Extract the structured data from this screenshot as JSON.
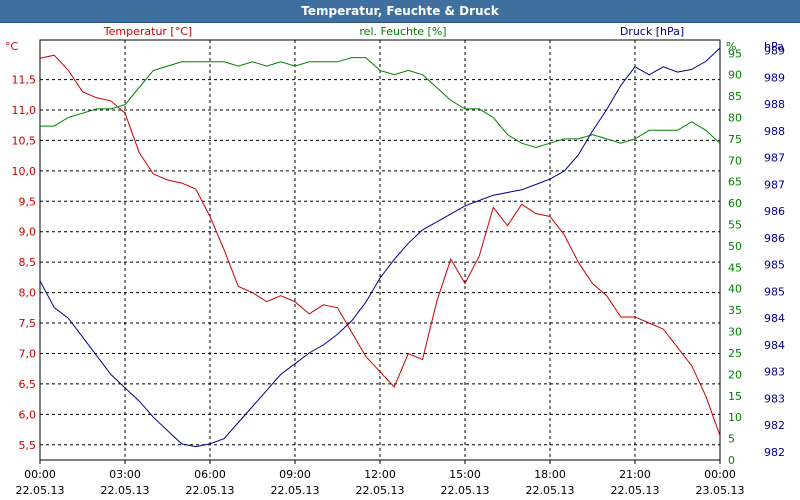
{
  "window": {
    "title": "Temperatur, Feuchte & Druck"
  },
  "colors": {
    "temperature": "#cc0000",
    "humidity": "#008000",
    "pressure": "#00008b",
    "grid": "#000000",
    "titlebar": "#3f6f9f"
  },
  "chart_data": {
    "type": "line",
    "title": "Temperatur, Feuchte & Druck",
    "x": [
      "00:00 22.05.13",
      "03:00 22.05.13",
      "06:00 22.05.13",
      "09:00 22.05.13",
      "12:00 22.05.13",
      "15:00 22.05.13",
      "18:00 22.05.13",
      "21:00 22.05.13",
      "00:00 23.05.13"
    ],
    "x_ticks": [
      {
        "time": "00:00",
        "date": "22.05.13"
      },
      {
        "time": "03:00",
        "date": "22.05.13"
      },
      {
        "time": "06:00",
        "date": "22.05.13"
      },
      {
        "time": "09:00",
        "date": "22.05.13"
      },
      {
        "time": "12:00",
        "date": "22.05.13"
      },
      {
        "time": "15:00",
        "date": "22.05.13"
      },
      {
        "time": "18:00",
        "date": "22.05.13"
      },
      {
        "time": "21:00",
        "date": "22.05.13"
      },
      {
        "time": "00:00",
        "date": "23.05.13"
      }
    ],
    "xlim_hours": [
      0,
      24
    ],
    "axes": {
      "temperature": {
        "label": "Temperatur [°C]",
        "unit": "°C",
        "ylim": [
          5.25,
          12.15
        ],
        "ticks": [
          "5,5",
          "6,0",
          "6,5",
          "7,0",
          "7,5",
          "8,0",
          "8,5",
          "9,0",
          "9,5",
          "10,0",
          "10,5",
          "11,0",
          "11,5"
        ],
        "tick_values": [
          5.5,
          6.0,
          6.5,
          7.0,
          7.5,
          8.0,
          8.5,
          9.0,
          9.5,
          10.0,
          10.5,
          11.0,
          11.5
        ]
      },
      "humidity": {
        "label": "rel. Feuchte [%]",
        "unit": "%",
        "ylim": [
          0,
          98.1
        ],
        "ticks": [
          "0",
          "5",
          "10",
          "15",
          "20",
          "25",
          "30",
          "35",
          "40",
          "45",
          "50",
          "55",
          "60",
          "65",
          "70",
          "75",
          "80",
          "85",
          "90",
          "95"
        ],
        "tick_values": [
          0,
          5,
          10,
          15,
          20,
          25,
          30,
          35,
          40,
          45,
          50,
          55,
          60,
          65,
          70,
          75,
          80,
          85,
          90,
          95
        ]
      },
      "pressure": {
        "label": "Druck [hPa]",
        "unit": "hPa",
        "ylim": [
          981.6,
          989.45
        ],
        "ticks": [
          "982",
          "982",
          "983",
          "983",
          "984",
          "984",
          "985",
          "985",
          "986",
          "986",
          "987",
          "987",
          "988",
          "988",
          "989",
          "989"
        ],
        "tick_values": [
          981.75,
          982.25,
          982.75,
          983.25,
          983.75,
          984.25,
          984.75,
          985.25,
          985.75,
          986.25,
          986.75,
          987.25,
          987.75,
          988.25,
          988.75,
          989.25
        ]
      }
    },
    "series": [
      {
        "name": "Temperatur [°C]",
        "axis": "temperature",
        "color": "#cc0000",
        "x": [
          0,
          0.5,
          1,
          1.5,
          2,
          2.5,
          3,
          3.5,
          4,
          4.5,
          5,
          5.5,
          6,
          6.5,
          7,
          7.5,
          8,
          8.5,
          9,
          9.5,
          10,
          10.5,
          11,
          11.5,
          12,
          12.5,
          13,
          13.5,
          14,
          14.5,
          15,
          15.5,
          16,
          16.5,
          17,
          17.5,
          18,
          18.5,
          19,
          19.5,
          20,
          20.5,
          21,
          21.5,
          22,
          22.5,
          23,
          23.5,
          24
        ],
        "values": [
          11.85,
          11.9,
          11.65,
          11.3,
          11.2,
          11.15,
          10.95,
          10.3,
          9.95,
          9.85,
          9.8,
          9.7,
          9.25,
          8.7,
          8.1,
          8.0,
          7.85,
          7.95,
          7.85,
          7.65,
          7.8,
          7.75,
          7.35,
          6.95,
          6.7,
          6.45,
          7.0,
          6.9,
          7.85,
          8.55,
          8.15,
          8.6,
          9.4,
          9.1,
          9.45,
          9.3,
          9.25,
          8.95,
          8.5,
          8.15,
          7.95,
          7.6,
          7.6,
          7.5,
          7.4,
          7.1,
          6.8,
          6.3,
          5.65
        ]
      },
      {
        "name": "rel. Feuchte [%]",
        "axis": "humidity",
        "color": "#008000",
        "x": [
          0,
          0.5,
          1,
          1.5,
          2,
          2.5,
          3,
          3.5,
          4,
          4.5,
          5,
          5.5,
          6,
          6.5,
          7,
          7.5,
          8,
          8.5,
          9,
          9.5,
          10,
          10.5,
          11,
          11.5,
          12,
          12.5,
          13,
          13.5,
          14,
          14.5,
          15,
          15.5,
          16,
          16.5,
          17,
          17.5,
          18,
          18.5,
          19,
          19.5,
          20,
          20.5,
          21,
          21.5,
          22,
          22.5,
          23,
          23.5,
          24
        ],
        "values": [
          78,
          78,
          80,
          81,
          82,
          82,
          83,
          87,
          91,
          92,
          93,
          93,
          93,
          93,
          92,
          93,
          92,
          93,
          92,
          93,
          93,
          93,
          94,
          94,
          91,
          90,
          91,
          90,
          87,
          84,
          82,
          82,
          80,
          76,
          74,
          73,
          74,
          75,
          75,
          76,
          75,
          74,
          75,
          77,
          77,
          77,
          79,
          77,
          74
        ]
      },
      {
        "name": "Druck [hPa]",
        "axis": "pressure",
        "color": "#00008b",
        "x": [
          0,
          0.5,
          1,
          1.5,
          2,
          2.5,
          3,
          3.5,
          4,
          4.5,
          5,
          5.5,
          6,
          6.5,
          7,
          7.5,
          8,
          8.5,
          9,
          9.5,
          10,
          10.5,
          11,
          11.5,
          12,
          12.5,
          13,
          13.5,
          14,
          14.5,
          15,
          15.5,
          16,
          16.5,
          17,
          17.5,
          18,
          18.5,
          19,
          19.5,
          20,
          20.5,
          21,
          21.5,
          22,
          22.5,
          23,
          23.5,
          24
        ],
        "values": [
          984.95,
          984.45,
          984.25,
          983.9,
          983.55,
          983.2,
          982.95,
          982.7,
          982.4,
          982.15,
          981.9,
          981.85,
          981.9,
          982.0,
          982.3,
          982.6,
          982.9,
          983.2,
          983.4,
          983.6,
          983.75,
          983.95,
          984.2,
          984.55,
          985.0,
          985.35,
          985.65,
          985.9,
          986.05,
          986.2,
          986.35,
          986.45,
          986.55,
          986.6,
          986.65,
          986.75,
          986.85,
          987.0,
          987.3,
          987.75,
          988.15,
          988.6,
          988.95,
          988.8,
          988.95,
          988.85,
          988.9,
          989.05,
          989.3
        ]
      }
    ],
    "grid": true
  }
}
